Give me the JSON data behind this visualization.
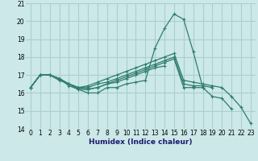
{
  "xlabel": "Humidex (Indice chaleur)",
  "ylabel": "",
  "bg_color": "#cce8e8",
  "grid_color": "#aacfcf",
  "line_color": "#2e7d6e",
  "xlim": [
    -0.5,
    23.5
  ],
  "ylim": [
    14.0,
    21.0
  ],
  "xticks": [
    0,
    1,
    2,
    3,
    4,
    5,
    6,
    7,
    8,
    9,
    10,
    11,
    12,
    13,
    14,
    15,
    16,
    17,
    18,
    19,
    20,
    21,
    22,
    23
  ],
  "yticks": [
    14,
    15,
    16,
    17,
    18,
    19,
    20,
    21
  ],
  "lines": [
    {
      "x": [
        0,
        1,
        2,
        3,
        4,
        5,
        6,
        7,
        8,
        9,
        10,
        11,
        12,
        13,
        14,
        15,
        16,
        17,
        18,
        19,
        20,
        21
      ],
      "y": [
        16.3,
        17.0,
        17.0,
        16.8,
        16.4,
        16.2,
        16.0,
        16.0,
        16.3,
        16.3,
        16.5,
        16.6,
        16.7,
        18.5,
        19.6,
        20.4,
        20.1,
        18.3,
        16.3,
        15.8,
        15.7,
        15.1
      ]
    },
    {
      "x": [
        0,
        1,
        2,
        3,
        4,
        5,
        6,
        7,
        8,
        9,
        10,
        11,
        12,
        13,
        14
      ],
      "y": [
        16.3,
        17.0,
        17.0,
        16.8,
        16.5,
        16.2,
        16.2,
        16.3,
        16.5,
        16.6,
        16.8,
        17.0,
        17.2,
        17.4,
        17.5
      ]
    },
    {
      "x": [
        0,
        1,
        2,
        3,
        4,
        5,
        6,
        7,
        8,
        9,
        10,
        11,
        12,
        13,
        14,
        15,
        16,
        17,
        18
      ],
      "y": [
        16.3,
        17.0,
        17.0,
        16.7,
        16.5,
        16.3,
        16.2,
        16.3,
        16.5,
        16.7,
        16.9,
        17.1,
        17.3,
        17.5,
        17.7,
        17.9,
        16.3,
        16.3,
        16.3
      ]
    },
    {
      "x": [
        0,
        1,
        2,
        3,
        4,
        5,
        6,
        7,
        8,
        9,
        10,
        11,
        12,
        13,
        14,
        15,
        16,
        17,
        18,
        19
      ],
      "y": [
        16.3,
        17.0,
        17.0,
        16.8,
        16.5,
        16.3,
        16.3,
        16.5,
        16.6,
        16.8,
        17.0,
        17.2,
        17.4,
        17.6,
        17.8,
        18.0,
        16.5,
        16.4,
        16.4,
        16.3
      ]
    },
    {
      "x": [
        0,
        1,
        2,
        3,
        4,
        5,
        6,
        7,
        8,
        9,
        10,
        11,
        12,
        13,
        14,
        15,
        16,
        17,
        18,
        19,
        20,
        21,
        22,
        23
      ],
      "y": [
        16.3,
        17.0,
        17.0,
        16.8,
        16.5,
        16.3,
        16.4,
        16.6,
        16.8,
        17.0,
        17.2,
        17.4,
        17.6,
        17.8,
        18.0,
        18.2,
        16.7,
        16.6,
        16.5,
        16.4,
        16.3,
        15.8,
        15.2,
        14.3
      ]
    }
  ]
}
